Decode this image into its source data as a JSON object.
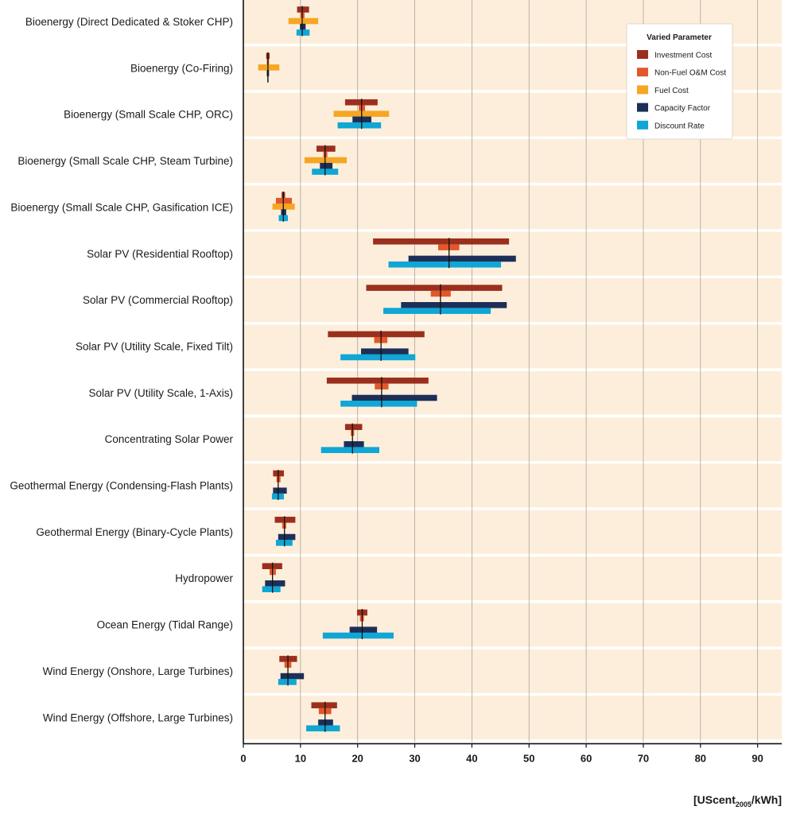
{
  "chart_data": {
    "type": "bar",
    "subtype": "horizontal-sensitivity-ranges",
    "title": "",
    "xlabel": "",
    "x_unit_label": {
      "prefix": "[UScent",
      "subscript": "2005",
      "suffix": "/kWh]"
    },
    "xlim": [
      0,
      95
    ],
    "xticks": [
      0,
      10,
      20,
      30,
      40,
      50,
      60,
      70,
      80,
      90
    ],
    "grid": true,
    "legend": {
      "title": "Varied Parameter",
      "placement": "top-right",
      "items": [
        {
          "name": "Investment Cost",
          "color": "#9b2f1e"
        },
        {
          "name": "Non-Fuel O&M Cost",
          "color": "#e2582a"
        },
        {
          "name": "Fuel Cost",
          "color": "#f6a623"
        },
        {
          "name": "Capacity Factor",
          "color": "#1d2f57"
        },
        {
          "name": "Discount Rate",
          "color": "#10a6d5"
        }
      ]
    },
    "categories": [
      "Bioenergy (Direct Dedicated & Stoker CHP)",
      "Bioenergy (Co-Firing)",
      "Bioenergy (Small Scale CHP, ORC)",
      "Bioenergy (Small Scale CHP, Steam Turbine)",
      "Bioenergy (Small Scale CHP, Gasification ICE)",
      "Solar PV (Residential Rooftop)",
      "Solar PV (Commercial Rooftop)",
      "Solar PV (Utility Scale, Fixed Tilt)",
      "Solar PV (Utility Scale, 1-Axis)",
      "Concentrating Solar Power",
      "Geothermal Energy (Condensing-Flash Plants)",
      "Geothermal Energy (Binary-Cycle Plants)",
      "Hydropower",
      "Ocean Energy (Tidal Range)",
      "Wind Energy (Onshore, Large Turbines)",
      "Wind Energy (Offshore, Large Turbines)"
    ],
    "baseline": [
      10.3,
      4.3,
      20.7,
      14.3,
      7.0,
      36.0,
      34.5,
      24.1,
      24.2,
      19.1,
      6.1,
      7.2,
      5.1,
      20.8,
      7.8,
      14.3
    ],
    "series": [
      {
        "name": "Investment Cost",
        "color": "#9b2f1e",
        "ranges": [
          [
            9.4,
            11.5
          ],
          [
            4.0,
            4.6
          ],
          [
            17.8,
            23.5
          ],
          [
            12.8,
            16.1
          ],
          [
            6.7,
            7.3
          ],
          [
            22.7,
            46.5
          ],
          [
            21.5,
            45.3
          ],
          [
            14.8,
            31.7
          ],
          [
            14.6,
            32.4
          ],
          [
            17.8,
            20.8
          ],
          [
            5.2,
            7.1
          ],
          [
            5.5,
            9.1
          ],
          [
            3.3,
            6.8
          ],
          [
            19.9,
            21.7
          ],
          [
            6.3,
            9.4
          ],
          [
            11.9,
            16.4
          ]
        ]
      },
      {
        "name": "Non-Fuel O&M Cost",
        "color": "#e2582a",
        "ranges": [
          [
            10.0,
            10.7
          ],
          [
            4.1,
            4.5
          ],
          [
            20.2,
            21.3
          ],
          [
            14.0,
            14.7
          ],
          [
            5.7,
            8.5
          ],
          [
            34.1,
            37.8
          ],
          [
            32.8,
            36.3
          ],
          [
            22.9,
            25.2
          ],
          [
            23.0,
            25.4
          ],
          [
            18.8,
            19.4
          ],
          [
            5.8,
            6.5
          ],
          [
            6.8,
            7.5
          ],
          [
            4.6,
            5.7
          ],
          [
            20.4,
            21.1
          ],
          [
            7.2,
            8.4
          ],
          [
            13.2,
            15.4
          ]
        ]
      },
      {
        "name": "Fuel Cost",
        "color": "#f6a623",
        "ranges": [
          [
            7.9,
            13.1
          ],
          [
            2.6,
            6.3
          ],
          [
            15.8,
            25.5
          ],
          [
            10.7,
            18.1
          ],
          [
            5.1,
            9.0
          ],
          null,
          null,
          null,
          null,
          null,
          null,
          null,
          null,
          null,
          null,
          null
        ]
      },
      {
        "name": "Capacity Factor",
        "color": "#1d2f57",
        "ranges": [
          [
            9.9,
            10.9
          ],
          [
            4.1,
            4.5
          ],
          [
            19.1,
            22.4
          ],
          [
            13.4,
            15.6
          ],
          [
            6.6,
            7.5
          ],
          [
            28.9,
            47.7
          ],
          [
            27.6,
            46.1
          ],
          [
            20.6,
            28.9
          ],
          [
            19.0,
            33.9
          ],
          [
            17.6,
            21.1
          ],
          [
            5.2,
            7.6
          ],
          [
            6.1,
            9.1
          ],
          [
            3.8,
            7.3
          ],
          [
            18.6,
            23.4
          ],
          [
            6.5,
            10.6
          ],
          [
            13.1,
            15.7
          ]
        ]
      },
      {
        "name": "Discount Rate",
        "color": "#10a6d5",
        "ranges": [
          [
            9.3,
            11.6
          ],
          [
            4.2,
            4.4
          ],
          [
            16.5,
            24.1
          ],
          [
            12.0,
            16.6
          ],
          [
            6.2,
            7.8
          ],
          [
            25.4,
            45.1
          ],
          [
            24.5,
            43.3
          ],
          [
            17.0,
            30.1
          ],
          [
            17.0,
            30.4
          ],
          [
            13.6,
            23.8
          ],
          [
            5.0,
            7.1
          ],
          [
            5.7,
            8.6
          ],
          [
            3.3,
            6.5
          ],
          [
            13.9,
            26.3
          ],
          [
            6.1,
            9.3
          ],
          [
            11.0,
            16.9
          ]
        ]
      }
    ]
  }
}
